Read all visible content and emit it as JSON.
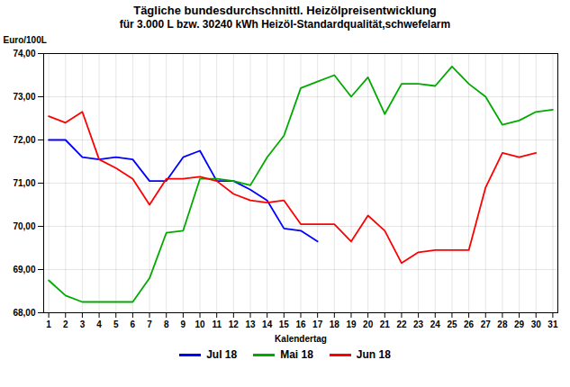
{
  "chart_data": {
    "type": "line",
    "title": "Tägliche bundesdurchschnittl. Heizölpreisentwicklung",
    "subtitle": "für 3.000 L bzw. 30240 kWh Heizöl-Standardqualität,schwefelarm",
    "x_label": "Kalendertag",
    "y_label": "Euro/100L",
    "xlim": [
      0.7,
      31.3
    ],
    "xticks": [
      1,
      2,
      3,
      4,
      5,
      6,
      7,
      8,
      9,
      10,
      11,
      12,
      13,
      14,
      15,
      16,
      17,
      18,
      19,
      20,
      21,
      22,
      23,
      24,
      25,
      26,
      27,
      28,
      29,
      30,
      31
    ],
    "ylim": [
      68.0,
      74.0
    ],
    "yticks": [
      {
        "value": 68.0,
        "label": "68,00"
      },
      {
        "value": 69.0,
        "label": "69,00"
      },
      {
        "value": 70.0,
        "label": "70,00"
      },
      {
        "value": 71.0,
        "label": "71,00"
      },
      {
        "value": 72.0,
        "label": "72,00"
      },
      {
        "value": 73.0,
        "label": "73,00"
      },
      {
        "value": 74.0,
        "label": "74,00"
      }
    ],
    "grid": true,
    "series": [
      {
        "name": "Jul 18",
        "color": "#0000FF",
        "x": [
          1,
          2,
          3,
          4,
          5,
          6,
          7,
          8,
          9,
          10,
          11,
          12,
          13,
          14,
          15,
          16,
          17
        ],
        "values": [
          72.0,
          72.0,
          71.6,
          71.55,
          71.6,
          71.55,
          71.05,
          71.05,
          71.6,
          71.75,
          71.05,
          71.05,
          70.85,
          70.6,
          69.95,
          69.9,
          69.65
        ]
      },
      {
        "name": "Mai 18",
        "color": "#00AA00",
        "x": [
          1,
          2,
          3,
          4,
          5,
          6,
          7,
          8,
          9,
          10,
          11,
          12,
          13,
          14,
          15,
          16,
          17,
          18,
          19,
          20,
          21,
          22,
          23,
          24,
          25,
          26,
          27,
          28,
          29,
          30,
          31
        ],
        "values": [
          68.75,
          68.4,
          68.25,
          68.25,
          68.25,
          68.25,
          68.8,
          69.85,
          69.9,
          71.1,
          71.1,
          71.05,
          70.95,
          71.6,
          72.1,
          73.2,
          73.35,
          73.5,
          73.0,
          73.45,
          72.6,
          73.3,
          73.3,
          73.25,
          73.7,
          73.3,
          73.0,
          72.35,
          72.45,
          72.65,
          72.7
        ]
      },
      {
        "name": "Jun 18",
        "color": "#FF0000",
        "x": [
          1,
          2,
          3,
          4,
          5,
          6,
          7,
          8,
          9,
          10,
          11,
          12,
          13,
          14,
          15,
          16,
          17,
          18,
          19,
          20,
          21,
          22,
          23,
          24,
          25,
          26,
          27,
          28,
          29,
          30
        ],
        "values": [
          72.55,
          72.4,
          72.65,
          71.55,
          71.35,
          71.1,
          70.5,
          71.1,
          71.1,
          71.15,
          71.05,
          70.75,
          70.6,
          70.55,
          70.6,
          70.05,
          70.05,
          70.05,
          69.65,
          70.25,
          69.9,
          69.15,
          69.4,
          69.45,
          69.45,
          69.45,
          70.9,
          71.7,
          71.6,
          71.7
        ]
      }
    ]
  }
}
